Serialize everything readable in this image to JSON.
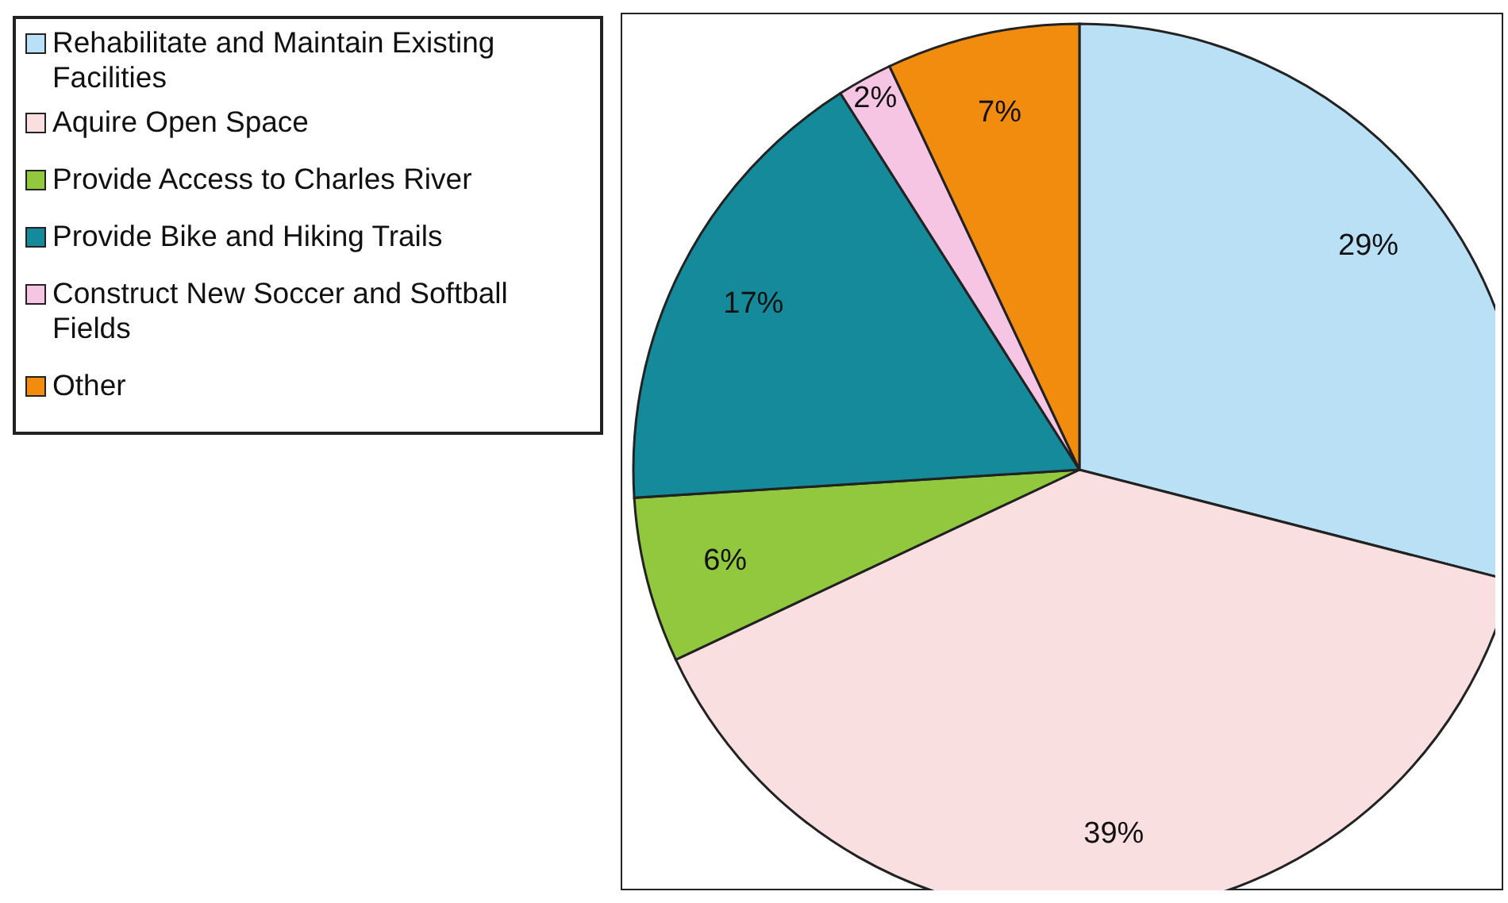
{
  "chart_data": {
    "type": "pie",
    "categories": [
      "Rehabilitate and Maintain Existing Facilities",
      "Aquire Open Space",
      "Provide Access to Charles River",
      "Provide Bike and Hiking Trails",
      "Construct New Soccer and Softball Fields",
      "Other"
    ],
    "values": [
      29,
      39,
      6,
      17,
      2,
      7
    ],
    "value_labels": [
      "29%",
      "39%",
      "6%",
      "17%",
      "2%",
      "7%"
    ],
    "colors": [
      "#b9e0f5",
      "#f9dfe0",
      "#92c83e",
      "#158a9b",
      "#f6c5e3",
      "#f28c0f"
    ],
    "legend": "top left"
  }
}
